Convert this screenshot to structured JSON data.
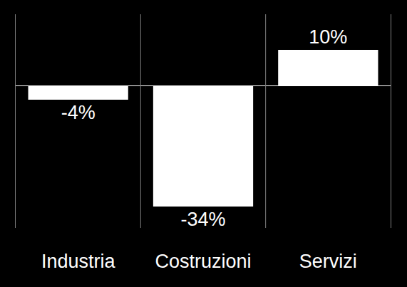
{
  "chart_data": {
    "type": "bar",
    "categories": [
      "Industria",
      "Costruzioni",
      "Servizi"
    ],
    "values": [
      -4,
      -34,
      10
    ],
    "value_labels": [
      "-4%",
      "-34%",
      "10%"
    ],
    "color": "#ffffff",
    "ylim": [
      -40,
      20
    ],
    "grid": true,
    "data_labels": true,
    "tick_labels": "x"
  }
}
